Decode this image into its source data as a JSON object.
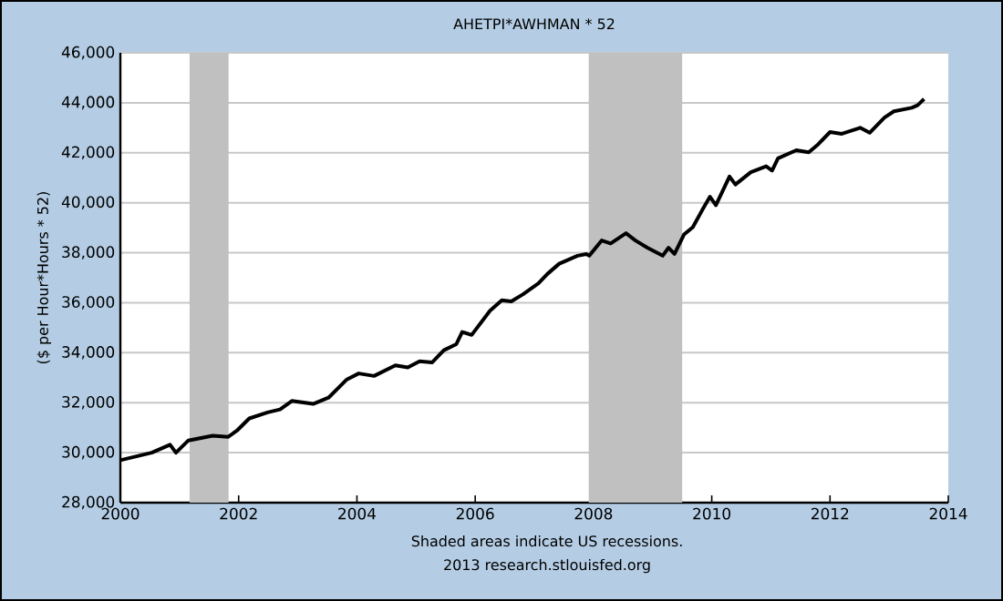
{
  "chart_data": {
    "type": "line",
    "title": "AHETPI*AWHMAN * 52",
    "ylabel": "($ per Hour*Hours * 52)",
    "annotations": [
      "Shaded areas indicate US recessions.",
      "2013 research.stlouisfed.org"
    ],
    "x": [
      2000.0,
      2000.53,
      2000.84,
      2000.94,
      2001.15,
      2001.56,
      2001.82,
      2001.97,
      2002.18,
      2002.49,
      2002.7,
      2002.9,
      2003.26,
      2003.52,
      2003.83,
      2004.03,
      2004.29,
      2004.65,
      2004.86,
      2005.06,
      2005.27,
      2005.47,
      2005.68,
      2005.78,
      2005.94,
      2006.25,
      2006.45,
      2006.61,
      2006.81,
      2007.07,
      2007.22,
      2007.42,
      2007.73,
      2007.88,
      2007.93,
      2008.14,
      2008.29,
      2008.55,
      2008.71,
      2008.91,
      2009.17,
      2009.27,
      2009.37,
      2009.53,
      2009.68,
      2009.84,
      2009.97,
      2010.07,
      2010.3,
      2010.4,
      2010.66,
      2010.92,
      2011.02,
      2011.12,
      2011.43,
      2011.64,
      2011.8,
      2012.0,
      2012.2,
      2012.51,
      2012.67,
      2012.92,
      2013.08,
      2013.38,
      2013.48,
      2013.59
    ],
    "series": [
      {
        "color": "#000000",
        "values": [
          29700,
          30000,
          30320,
          30000,
          30490,
          30680,
          30630,
          30880,
          31370,
          31610,
          31730,
          32070,
          31950,
          32200,
          32930,
          33170,
          33070,
          33490,
          33410,
          33660,
          33610,
          34100,
          34340,
          34830,
          34710,
          35680,
          36100,
          36050,
          36340,
          36780,
          37150,
          37560,
          37880,
          37950,
          37880,
          38490,
          38370,
          38780,
          38490,
          38200,
          37880,
          38200,
          37950,
          38730,
          39020,
          39710,
          40240,
          39900,
          41050,
          40730,
          41220,
          41460,
          41290,
          41780,
          42100,
          42020,
          42340,
          42830,
          42760,
          43000,
          42800,
          43410,
          43660,
          43800,
          43900,
          44150
        ]
      }
    ],
    "xlim": [
      2000,
      2014
    ],
    "xticks": [
      2000,
      2002,
      2004,
      2006,
      2008,
      2010,
      2012,
      2014
    ],
    "ylim": [
      28000,
      46000
    ],
    "yticks": [
      {
        "value": 28000,
        "label": "28,000"
      },
      {
        "value": 30000,
        "label": "30,000"
      },
      {
        "value": 32000,
        "label": "32,000"
      },
      {
        "value": 34000,
        "label": "34,000"
      },
      {
        "value": 36000,
        "label": "36,000"
      },
      {
        "value": 38000,
        "label": "38,000"
      },
      {
        "value": 40000,
        "label": "40,000"
      },
      {
        "value": 42000,
        "label": "42,000"
      },
      {
        "value": 44000,
        "label": "44,000"
      },
      {
        "value": 46000,
        "label": "46,000"
      }
    ],
    "bands": [
      {
        "axis": "x",
        "from": 2001.17,
        "to": 2001.83,
        "color": "#c0c0c0"
      },
      {
        "axis": "x",
        "from": 2007.92,
        "to": 2009.5,
        "color": "#c0c0c0"
      }
    ],
    "grid": "y",
    "line_style": "solid",
    "marker": "none"
  }
}
